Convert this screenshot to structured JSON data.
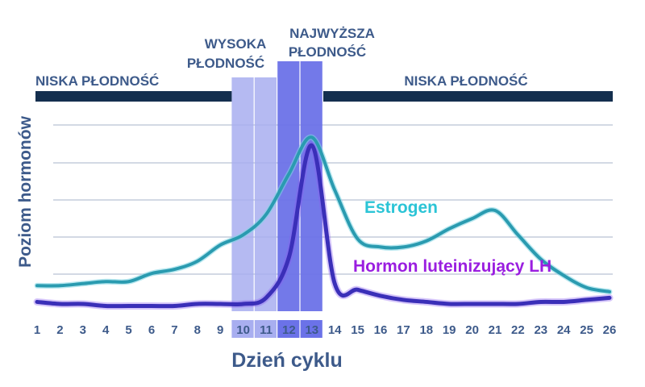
{
  "chart_data": {
    "type": "line",
    "xlabel": "Dzień cyklu",
    "ylabel": "Poziom hormonów",
    "x": [
      1,
      2,
      3,
      4,
      5,
      6,
      7,
      8,
      9,
      10,
      11,
      12,
      13,
      14,
      15,
      16,
      17,
      18,
      19,
      20,
      21,
      22,
      23,
      24,
      25,
      26
    ],
    "x_ticks": [
      "1",
      "2",
      "3",
      "4",
      "5",
      "6",
      "7",
      "8",
      "9",
      "10",
      "11",
      "12",
      "13",
      "14",
      "15",
      "16",
      "17",
      "18",
      "19",
      "20",
      "21",
      "22",
      "23",
      "24",
      "25",
      "26"
    ],
    "ylim": [
      0,
      100
    ],
    "grid": "horizontal",
    "series": [
      {
        "name": "Estrogen",
        "label_color": "#2bc4d6",
        "color": "#2a9bb0",
        "values": [
          11,
          11,
          12,
          13,
          13,
          17,
          19,
          23,
          31,
          36,
          46,
          66,
          84,
          58,
          34,
          30,
          30,
          33,
          39,
          44,
          48,
          36,
          24,
          16,
          10,
          8
        ]
      },
      {
        "name": "Hormon luteinizujący LH",
        "label_color": "#9a1ee0",
        "color": "#3a2fb8",
        "values": [
          3,
          2,
          2,
          1,
          1,
          1,
          1,
          2,
          2,
          2,
          5,
          25,
          80,
          12,
          9,
          6,
          4,
          3,
          2,
          2,
          2,
          2,
          3,
          3,
          4,
          5
        ]
      }
    ],
    "bands": [
      {
        "label": "NISKA PŁODNOŚĆ",
        "from": 1,
        "to": 9,
        "bar_color": "#142f4e"
      },
      {
        "label": "WYSOKA PŁODNOŚĆ",
        "from": 10,
        "to": 11,
        "color": "#a8aef0"
      },
      {
        "label": "NAJWYŻSZA PŁODNOŚĆ",
        "from": 12,
        "to": 13,
        "color": "#6b72e8"
      },
      {
        "label": "NISKA PŁODNOŚĆ",
        "from": 14,
        "to": 26,
        "bar_color": "#142f4e"
      }
    ],
    "highlighted_ticks": [
      "10",
      "11",
      "12",
      "13"
    ],
    "text_color": "#3d5a8a"
  }
}
